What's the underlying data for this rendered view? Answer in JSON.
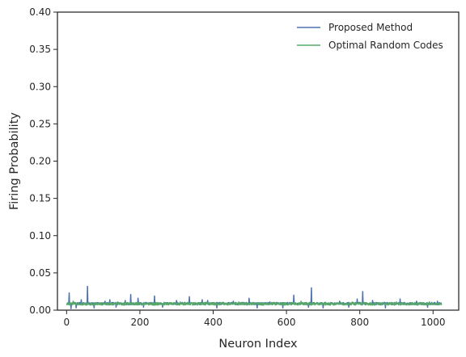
{
  "chart_data": {
    "type": "line",
    "xlabel": "Neuron Index",
    "ylabel": "Firing Probability",
    "xlim": [
      -25,
      1070
    ],
    "ylim": [
      0,
      0.4
    ],
    "x_ticks": [
      0,
      200,
      400,
      600,
      800,
      1000
    ],
    "y_ticks": [
      0.0,
      0.05,
      0.1,
      0.15,
      0.2,
      0.25,
      0.3,
      0.35,
      0.4
    ],
    "grid": false,
    "legend_position": "top-right",
    "num_points": 1024,
    "series": [
      {
        "name": "Proposed Method",
        "color": "#4c72b0",
        "baseline": 0.0088,
        "noise": 0.0016,
        "spikes": [
          [
            7,
            0.023
          ],
          [
            12,
            0.002
          ],
          [
            26,
            0.003
          ],
          [
            40,
            0.014
          ],
          [
            57,
            0.032
          ],
          [
            75,
            0.003
          ],
          [
            105,
            0.012
          ],
          [
            118,
            0.014
          ],
          [
            135,
            0.004
          ],
          [
            160,
            0.013
          ],
          [
            175,
            0.021
          ],
          [
            195,
            0.016
          ],
          [
            210,
            0.004
          ],
          [
            240,
            0.019
          ],
          [
            262,
            0.004
          ],
          [
            300,
            0.013
          ],
          [
            335,
            0.018
          ],
          [
            370,
            0.014
          ],
          [
            385,
            0.013
          ],
          [
            410,
            0.003
          ],
          [
            455,
            0.012
          ],
          [
            498,
            0.016
          ],
          [
            520,
            0.003
          ],
          [
            555,
            0.011
          ],
          [
            590,
            0.003
          ],
          [
            620,
            0.02
          ],
          [
            660,
            0.004
          ],
          [
            668,
            0.03
          ],
          [
            700,
            0.003
          ],
          [
            745,
            0.012
          ],
          [
            770,
            0.004
          ],
          [
            793,
            0.015
          ],
          [
            808,
            0.025
          ],
          [
            835,
            0.013
          ],
          [
            870,
            0.003
          ],
          [
            910,
            0.015
          ],
          [
            955,
            0.012
          ],
          [
            985,
            0.004
          ],
          [
            1012,
            0.012
          ]
        ]
      },
      {
        "name": "Optimal Random Codes",
        "color": "#55a868",
        "baseline": 0.0085,
        "noise": 0.0018,
        "spikes": [
          [
            18,
            0.012
          ],
          [
            140,
            0.011
          ],
          [
            310,
            0.011
          ],
          [
            470,
            0.011
          ],
          [
            640,
            0.012
          ],
          [
            780,
            0.011
          ],
          [
            900,
            0.011
          ],
          [
            990,
            0.011
          ]
        ]
      }
    ]
  }
}
